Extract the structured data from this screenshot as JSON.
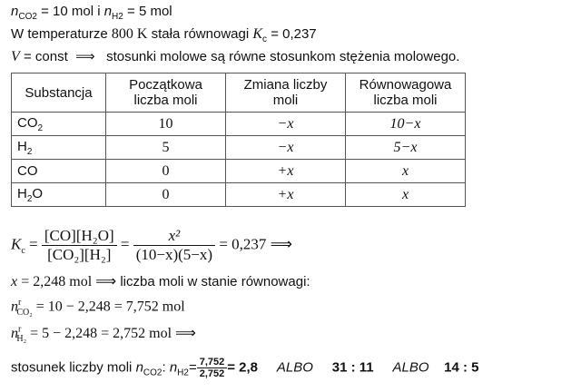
{
  "given": {
    "n_sym": "n",
    "co2_sub": "CO2",
    "co2_val": "= 10 mol i",
    "h2_sub": "H2",
    "h2_val": "= 5 mol"
  },
  "line2": {
    "text": "W temperaturze",
    "temp": "800 K",
    "text2": "stała równowagi",
    "K": "K",
    "c": "c",
    "val": "= 0,237"
  },
  "line3": {
    "V": "V",
    "text": "= const  ⟹   stosunki molowe są równe stosunkom stężenia molowego."
  },
  "table": {
    "headers": [
      "Substancja",
      "Początkowa liczba moli",
      "Zmiana liczby moli",
      "Równowagowa liczba moli"
    ],
    "rows": [
      {
        "name": "CO",
        "sub": "2",
        "init": "10",
        "change": "−x",
        "eq": "10−x"
      },
      {
        "name": "H",
        "sub": "2",
        "init": "5",
        "change": "−x",
        "eq": "5−x"
      },
      {
        "name": "CO",
        "sub": "",
        "init": "0",
        "change": "+x",
        "eq": "x"
      },
      {
        "name": "H",
        "sub": "2",
        "tail": "O",
        "init": "0",
        "change": "+x",
        "eq": "x"
      }
    ]
  },
  "kc": {
    "lhs": "K",
    "c": "c",
    "num1": "[CO][H₂O]",
    "den1": "[CO₂][H₂]",
    "num2": "x²",
    "den2": "(10−x)(5−x)",
    "rhs": "= 0,237 ⟹"
  },
  "xline": {
    "x": "x",
    "val": "= 2,248 mol ⟹",
    "text": "liczba moli w stanie równowagi:"
  },
  "nco2": {
    "n": "n",
    "sup": "r",
    "sub": "CO₂",
    "expr": "= 10 − 2,248 = 7,752 mol"
  },
  "nh2": {
    "n": "n",
    "sup": "r",
    "sub": "H₂",
    "expr": "= 5 − 2,248 = 2,752 mol ⟹"
  },
  "ratio": {
    "text": "stosunek liczby moli",
    "n": "n",
    "co2": "CO2",
    "colon": ":",
    "h2": "H2",
    "eq": "=",
    "num": "7,752",
    "den": "2,752",
    "res": "= 2,8",
    "albo1": "ALBO",
    "r2": "31 : 11",
    "albo2": "ALBO",
    "r3": "14 : 5"
  }
}
